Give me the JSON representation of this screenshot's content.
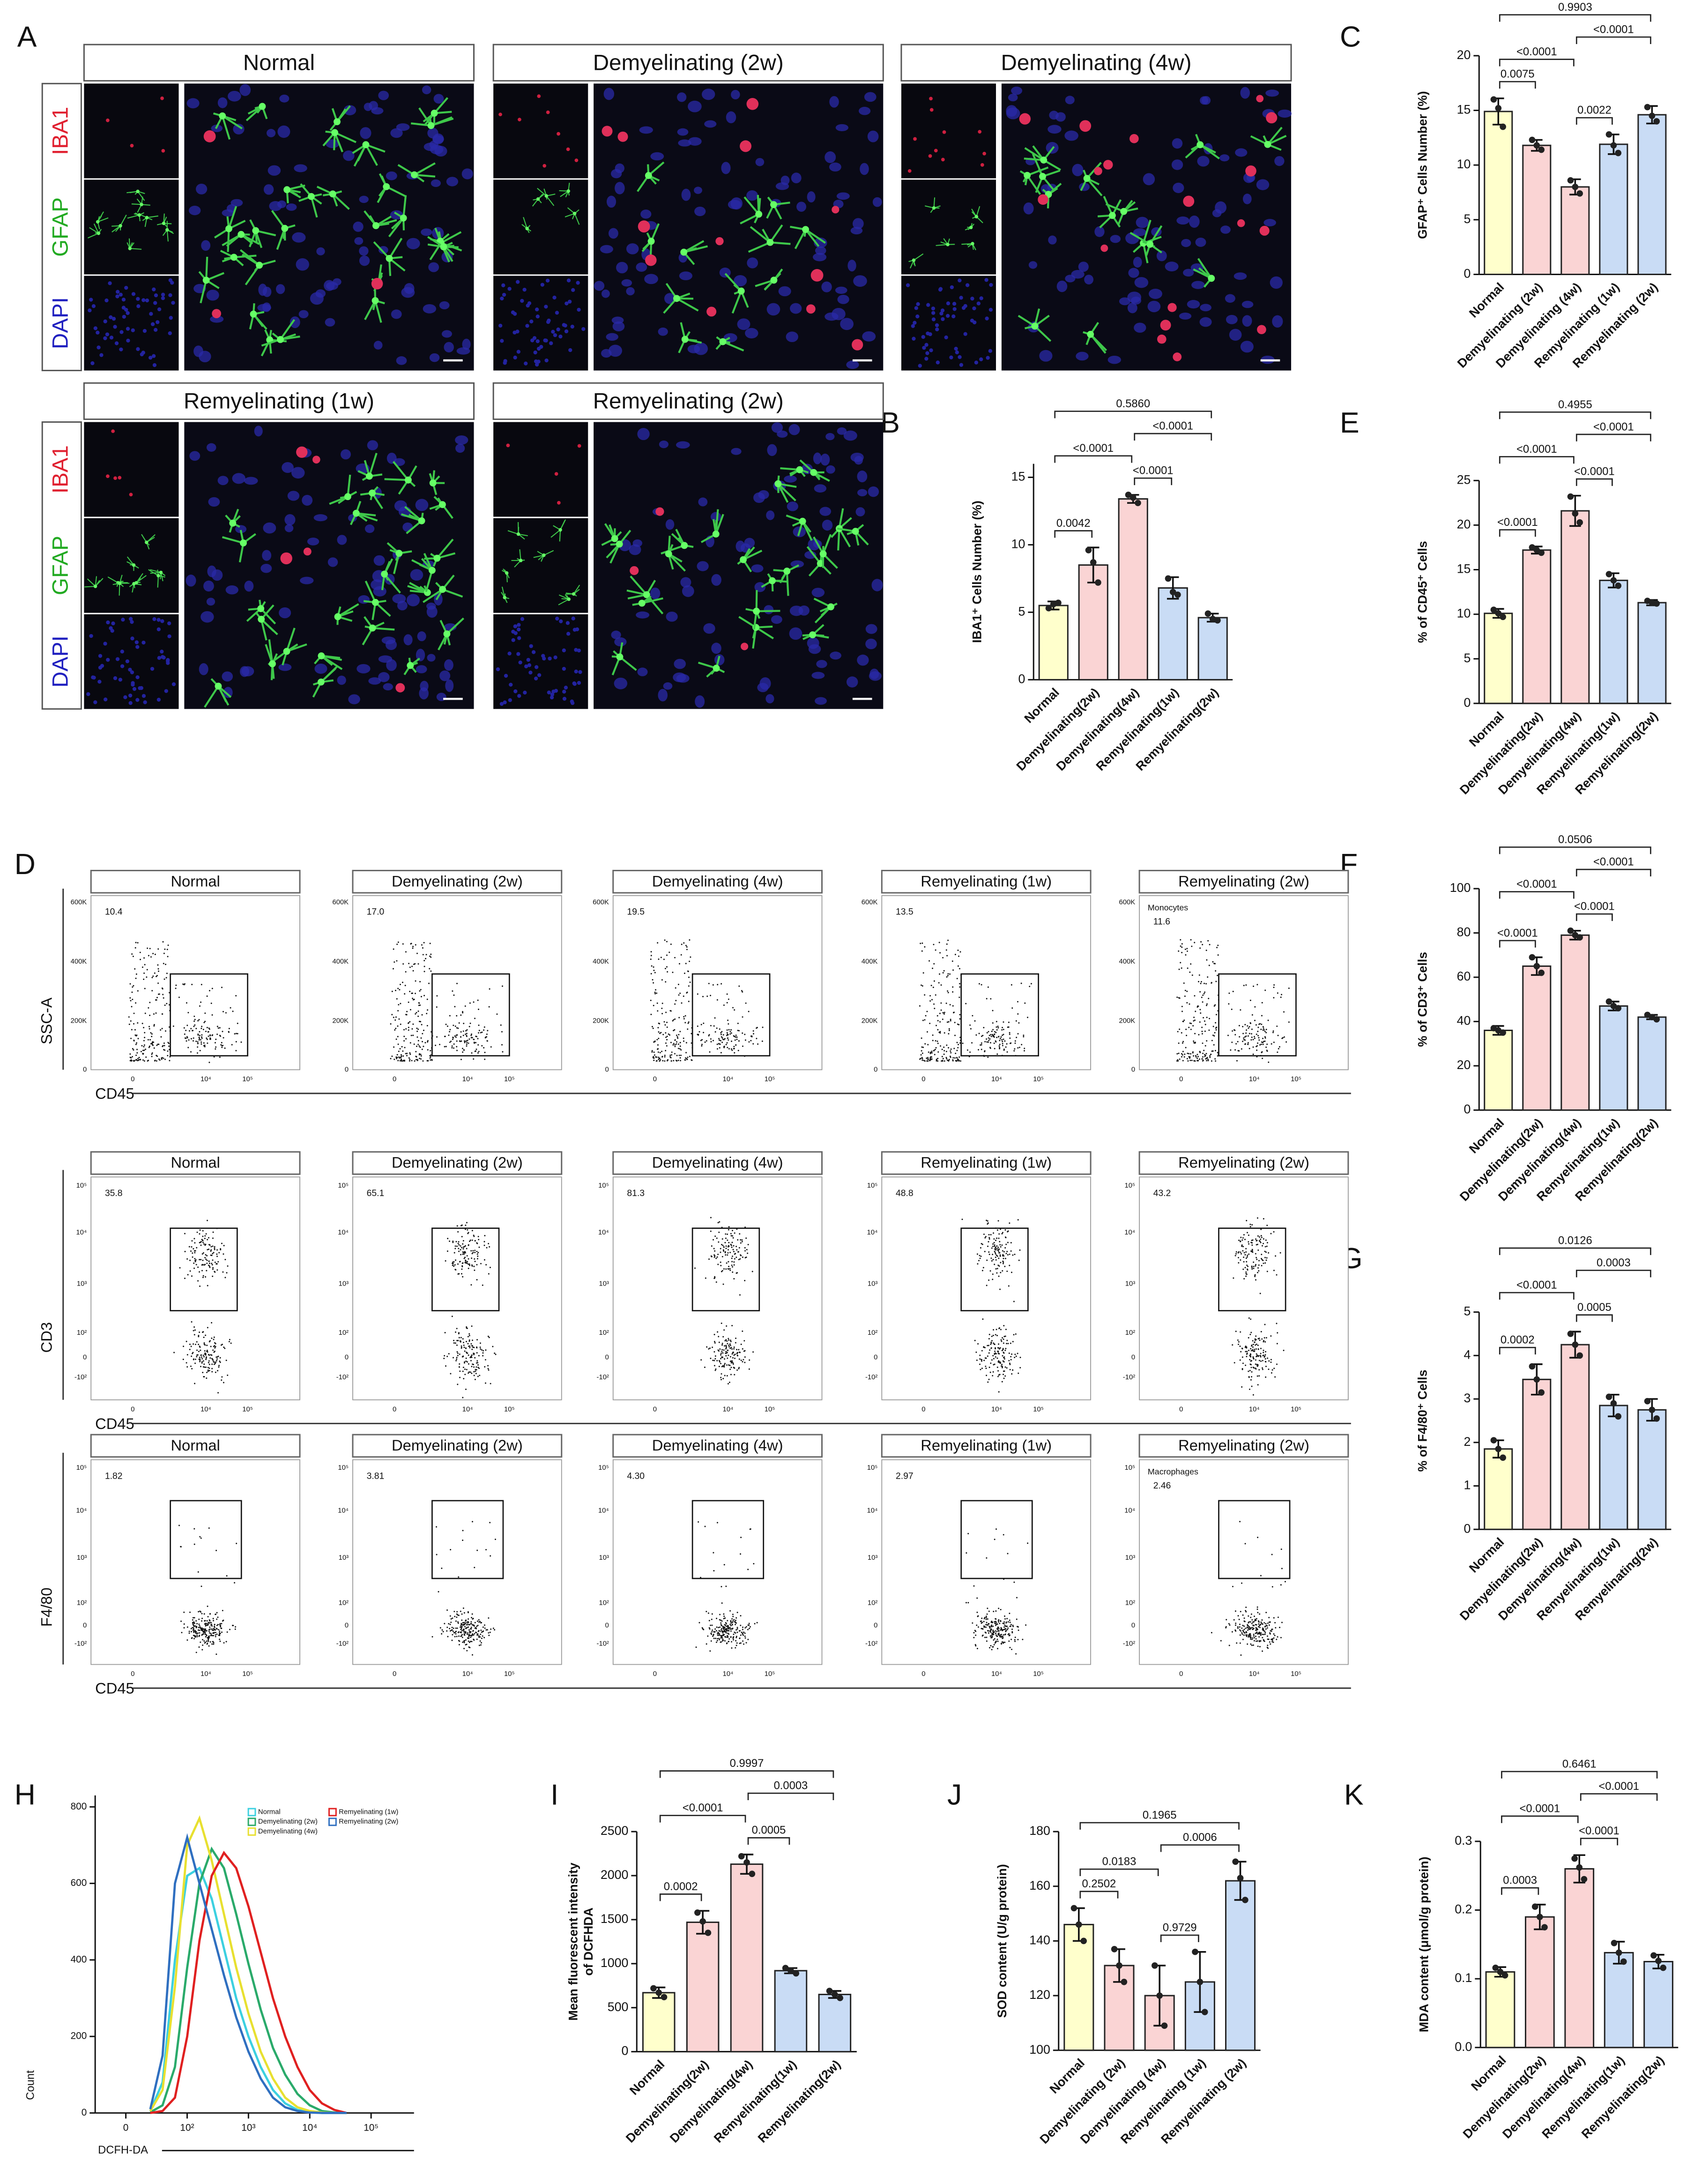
{
  "panel_labels": [
    "A",
    "B",
    "C",
    "D",
    "E",
    "F",
    "G",
    "H",
    "I",
    "J",
    "K"
  ],
  "microscopy": {
    "groups": [
      "Normal",
      "Demyelinating (2w)",
      "Demyelinating (4w)",
      "Remyelinating (1w)",
      "Remyelinating (2w)"
    ],
    "channels": [
      "IBA1",
      "GFAP",
      "DAPI"
    ]
  },
  "flow": {
    "groups": [
      "Normal",
      "Demyelinating (2w)",
      "Demyelinating (4w)",
      "Remyelinating (1w)",
      "Remyelinating (2w)"
    ],
    "x_label": "CD45",
    "rows": [
      {
        "y_label": "SSC-A",
        "yticks": [
          "600K",
          "400K",
          "200K",
          "0"
        ],
        "xticks": [
          "0",
          "10⁴",
          "10⁵"
        ],
        "gates": [
          "10.4",
          "17.0",
          "19.5",
          "13.5",
          "11.6"
        ],
        "gate_name": "Monocytes"
      },
      {
        "y_label": "CD3",
        "yticks": [
          "10⁵",
          "10⁴",
          "10³",
          "10²",
          "0",
          "-10²"
        ],
        "xticks": [
          "0",
          "10⁴",
          "10⁵"
        ],
        "gates": [
          "35.8",
          "65.1",
          "81.3",
          "48.8",
          "43.2"
        ]
      },
      {
        "y_label": "F4/80",
        "yticks": [
          "10⁵",
          "10⁴",
          "10³",
          "10²",
          "0",
          "-10²"
        ],
        "xticks": [
          "0",
          "10⁴",
          "10⁵"
        ],
        "gates": [
          "1.82",
          "3.81",
          "4.30",
          "2.97",
          "2.46"
        ],
        "gate_name": "Macrophages"
      }
    ]
  },
  "chart_data": [
    {
      "type": "line",
      "x_label": "DCFH-DA",
      "y_label": "Count",
      "x": [
        1.4,
        1.6,
        1.8,
        2.0,
        2.2,
        2.4,
        2.6,
        2.8,
        3.0,
        3.2,
        3.4,
        3.6,
        3.8,
        4.0,
        4.2,
        4.4,
        4.6
      ],
      "series": [
        {
          "name": "Normal",
          "color": "#3cd0e0",
          "values": [
            5,
            80,
            400,
            620,
            640,
            560,
            430,
            300,
            200,
            120,
            60,
            25,
            8,
            2,
            0,
            0,
            0
          ]
        },
        {
          "name": "Demyelinating (2w)",
          "color": "#2aaa6a",
          "values": [
            2,
            20,
            120,
            380,
            600,
            690,
            640,
            520,
            390,
            270,
            170,
            100,
            50,
            20,
            5,
            1,
            0
          ]
        },
        {
          "name": "Demyelinating (4w)",
          "color": "#e8e030",
          "values": [
            5,
            60,
            330,
            700,
            770,
            660,
            520,
            380,
            260,
            160,
            90,
            40,
            15,
            5,
            1,
            0,
            0
          ]
        },
        {
          "name": "Remyelinating (1w)",
          "color": "#e02020",
          "values": [
            0,
            5,
            40,
            200,
            450,
            620,
            680,
            640,
            540,
            420,
            300,
            200,
            120,
            60,
            25,
            8,
            0
          ]
        },
        {
          "name": "Remyelinating (2w)",
          "color": "#2f6fc0",
          "values": [
            10,
            150,
            600,
            720,
            600,
            480,
            360,
            250,
            160,
            90,
            40,
            15,
            5,
            1,
            0,
            0,
            0
          ]
        }
      ],
      "xlim": [
        0.5,
        5.7
      ],
      "xticks": [
        {
          "value": 1,
          "label": "0"
        },
        {
          "value": 2,
          "label": "10²"
        },
        {
          "value": 3,
          "label": "10³"
        },
        {
          "value": 4,
          "label": "10⁴"
        },
        {
          "value": 5,
          "label": "10⁵"
        }
      ],
      "ylim": [
        0,
        830
      ],
      "yticks": [
        0,
        200,
        400,
        600,
        800
      ]
    },
    {
      "type": "bar",
      "y_label": "IBA1⁺ Cells Number (%)",
      "categories": [
        "Normal",
        "Demyelinating(2w)",
        "Demyelinating(4w)",
        "Remyelinating(1w)",
        "Remyelinating(2w)"
      ],
      "values": [
        5.5,
        8.5,
        13.4,
        6.8,
        4.6
      ],
      "errors": [
        0.3,
        1.3,
        0.3,
        0.8,
        0.3
      ],
      "points": [
        [
          5.3,
          5.6,
          5.7
        ],
        [
          9.6,
          8.7,
          7.2
        ],
        [
          13.7,
          13.5,
          13.1
        ],
        [
          7.5,
          6.5,
          6.3
        ],
        [
          4.9,
          4.5,
          4.4
        ]
      ],
      "colors": [
        "#ffffcc",
        "#fad4d4",
        "#fad4d4",
        "#c9dcf5",
        "#c9dcf5"
      ],
      "ylim": [
        0,
        16
      ],
      "yticks": [
        0,
        5,
        10,
        15
      ],
      "comparisons": [
        {
          "from": 0,
          "to": 1,
          "label": "0.0042"
        },
        {
          "from": 0,
          "to": 2,
          "label": "<0.0001"
        },
        {
          "from": 2,
          "to": 3,
          "label": "<0.0001"
        },
        {
          "from": 2,
          "to": 4,
          "label": "<0.0001"
        },
        {
          "from": 0,
          "to": 4,
          "label": "0.5860"
        }
      ]
    },
    {
      "type": "bar",
      "y_label": "GFAP⁺ Cells Number (%)",
      "categories": [
        "Normal",
        "Demyelinating (2w)",
        "Demyelinating (4w)",
        "Remyelinating (1w)",
        "Remyelinating (2w)"
      ],
      "values": [
        14.9,
        11.8,
        8.0,
        11.9,
        14.6
      ],
      "errors": [
        1.2,
        0.5,
        0.7,
        0.9,
        0.8
      ],
      "points": [
        [
          16.0,
          15.2,
          13.5
        ],
        [
          12.3,
          11.8,
          11.4
        ],
        [
          8.6,
          8.0,
          7.4
        ],
        [
          12.8,
          11.8,
          11.1
        ],
        [
          15.3,
          14.5,
          14.0
        ]
      ],
      "colors": [
        "#ffffcc",
        "#fad4d4",
        "#fad4d4",
        "#c9dcf5",
        "#c9dcf5"
      ],
      "ylim": [
        0,
        20
      ],
      "yticks": [
        0,
        5,
        10,
        15,
        20
      ],
      "comparisons": [
        {
          "from": 0,
          "to": 1,
          "label": "0.0075"
        },
        {
          "from": 2,
          "to": 3,
          "label": "0.0022"
        },
        {
          "from": 0,
          "to": 2,
          "label": "<0.0001"
        },
        {
          "from": 2,
          "to": 4,
          "label": "<0.0001"
        },
        {
          "from": 0,
          "to": 4,
          "label": "0.9903"
        }
      ]
    },
    {
      "type": "bar",
      "y_label": "% of CD45⁺ Cells",
      "categories": [
        "Normal",
        "Demyelinating(2w)",
        "Demyelinating(4w)",
        "Remyelinating(1w)",
        "Remyelinating(2w)"
      ],
      "values": [
        10.1,
        17.2,
        21.6,
        13.8,
        11.3
      ],
      "errors": [
        0.5,
        0.4,
        1.7,
        0.8,
        0.3
      ],
      "points": [
        [
          10.5,
          10.1,
          9.7
        ],
        [
          17.5,
          17.2,
          16.9
        ],
        [
          23.2,
          21.3,
          20.3
        ],
        [
          14.5,
          13.8,
          13.2
        ],
        [
          11.5,
          11.3,
          11.2
        ]
      ],
      "colors": [
        "#ffffcc",
        "#fad4d4",
        "#fad4d4",
        "#c9dcf5",
        "#c9dcf5"
      ],
      "ylim": [
        0,
        25
      ],
      "yticks": [
        0,
        5,
        10,
        15,
        20,
        25
      ],
      "comparisons": [
        {
          "from": 0,
          "to": 1,
          "label": "<0.0001"
        },
        {
          "from": 0,
          "to": 2,
          "label": "<0.0001"
        },
        {
          "from": 2,
          "to": 3,
          "label": "<0.0001"
        },
        {
          "from": 2,
          "to": 4,
          "label": "<0.0001"
        },
        {
          "from": 0,
          "to": 4,
          "label": "0.4955"
        }
      ]
    },
    {
      "type": "bar",
      "y_label": "% of CD3⁺ Cells",
      "categories": [
        "Normal",
        "Demyelinating(2w)",
        "Demyelinating(4w)",
        "Remyelinating(1w)",
        "Remyelinating(2w)"
      ],
      "values": [
        36,
        65,
        79,
        47,
        42
      ],
      "errors": [
        2,
        4,
        2,
        2,
        1
      ],
      "points": [
        [
          37,
          36,
          35
        ],
        [
          69,
          65,
          62
        ],
        [
          81,
          79,
          78
        ],
        [
          49,
          47,
          46
        ],
        [
          43,
          42,
          41
        ]
      ],
      "colors": [
        "#ffffcc",
        "#fad4d4",
        "#fad4d4",
        "#c9dcf5",
        "#c9dcf5"
      ],
      "ylim": [
        0,
        100
      ],
      "yticks": [
        0,
        20,
        40,
        60,
        80,
        100
      ],
      "comparisons": [
        {
          "from": 0,
          "to": 1,
          "label": "<0.0001"
        },
        {
          "from": 0,
          "to": 2,
          "label": "<0.0001"
        },
        {
          "from": 2,
          "to": 3,
          "label": "<0.0001"
        },
        {
          "from": 2,
          "to": 4,
          "label": "<0.0001"
        },
        {
          "from": 0,
          "to": 4,
          "label": "0.0506"
        }
      ]
    },
    {
      "type": "bar",
      "y_label": "% of F4/80⁺ Cells",
      "categories": [
        "Normal",
        "Demyelinating(2w)",
        "Demyelinating(4w)",
        "Remyelinating(1w)",
        "Remyelinating(2w)"
      ],
      "values": [
        1.85,
        3.45,
        4.25,
        2.85,
        2.75
      ],
      "errors": [
        0.2,
        0.35,
        0.3,
        0.25,
        0.25
      ],
      "points": [
        [
          2.05,
          1.85,
          1.65
        ],
        [
          3.75,
          3.45,
          3.15
        ],
        [
          4.5,
          4.25,
          4.0
        ],
        [
          3.05,
          2.9,
          2.6
        ],
        [
          2.95,
          2.75,
          2.55
        ]
      ],
      "colors": [
        "#ffffcc",
        "#fad4d4",
        "#fad4d4",
        "#c9dcf5",
        "#c9dcf5"
      ],
      "ylim": [
        0,
        5
      ],
      "yticks": [
        0,
        1,
        2,
        3,
        4,
        5
      ],
      "comparisons": [
        {
          "from": 0,
          "to": 1,
          "label": "0.0002"
        },
        {
          "from": 0,
          "to": 2,
          "label": "<0.0001"
        },
        {
          "from": 2,
          "to": 3,
          "label": "0.0005"
        },
        {
          "from": 2,
          "to": 4,
          "label": "0.0003"
        },
        {
          "from": 0,
          "to": 4,
          "label": "0.0126"
        }
      ]
    },
    {
      "type": "bar",
      "y_label": [
        "Mean fluorescent  intensity",
        "of DCFHDA"
      ],
      "categories": [
        "Normal",
        "Demyelinating(2w)",
        "Demyelinating(4w)",
        "Remyelinating(1w)",
        "Remyelinating(2w)"
      ],
      "values": [
        670,
        1470,
        2130,
        920,
        650
      ],
      "errors": [
        60,
        130,
        110,
        30,
        40
      ],
      "points": [
        [
          720,
          670,
          620
        ],
        [
          1580,
          1480,
          1350
        ],
        [
          2220,
          2150,
          2020
        ],
        [
          950,
          920,
          890
        ],
        [
          690,
          650,
          610
        ]
      ],
      "colors": [
        "#ffffcc",
        "#fad4d4",
        "#fad4d4",
        "#c9dcf5",
        "#c9dcf5"
      ],
      "ylim": [
        0,
        2500
      ],
      "yticks": [
        0,
        500,
        1000,
        1500,
        2000,
        2500
      ],
      "comparisons": [
        {
          "from": 0,
          "to": 1,
          "label": "0.0002"
        },
        {
          "from": 0,
          "to": 2,
          "label": "<0.0001"
        },
        {
          "from": 2,
          "to": 3,
          "label": "0.0005"
        },
        {
          "from": 2,
          "to": 4,
          "label": "0.0003"
        },
        {
          "from": 0,
          "to": 4,
          "label": "0.9997"
        }
      ]
    },
    {
      "type": "bar",
      "y_label": "SOD content (U/g protein)",
      "categories": [
        "Normal",
        "Demyelinating (2w)",
        "Demyelinating (4w)",
        "Remyelinating (1w)",
        "Remyelinating (2w)"
      ],
      "values": [
        146,
        131,
        120,
        125,
        162
      ],
      "errors": [
        6,
        6,
        11,
        11,
        7
      ],
      "points": [
        [
          152,
          146,
          140
        ],
        [
          137,
          131,
          125
        ],
        [
          131,
          120,
          109
        ],
        [
          136,
          125,
          114
        ],
        [
          169,
          163,
          155
        ]
      ],
      "colors": [
        "#ffffcc",
        "#fad4d4",
        "#fad4d4",
        "#c9dcf5",
        "#c9dcf5"
      ],
      "ylim": [
        100,
        180
      ],
      "yticks": [
        100,
        120,
        140,
        160,
        180
      ],
      "comparisons": [
        {
          "from": 0,
          "to": 1,
          "label": "0.2502"
        },
        {
          "from": 0,
          "to": 2,
          "label": "0.0183"
        },
        {
          "from": 2,
          "to": 3,
          "label": "0.9729"
        },
        {
          "from": 2,
          "to": 4,
          "label": "0.0006"
        },
        {
          "from": 0,
          "to": 4,
          "label": "0.1965"
        }
      ]
    },
    {
      "type": "bar",
      "y_label": "MDA content (μmol/g protein)",
      "categories": [
        "Normal",
        "Demyelinating(2w)",
        "Demyelinating(4w)",
        "Remyelinating(1w)",
        "Remyelinating(2w)"
      ],
      "values": [
        0.11,
        0.19,
        0.26,
        0.138,
        0.125
      ],
      "errors": [
        0.007,
        0.018,
        0.02,
        0.016,
        0.01
      ],
      "points": [
        [
          0.116,
          0.11,
          0.105
        ],
        [
          0.205,
          0.19,
          0.175
        ],
        [
          0.275,
          0.262,
          0.245
        ],
        [
          0.152,
          0.138,
          0.125
        ],
        [
          0.134,
          0.126,
          0.116
        ]
      ],
      "colors": [
        "#ffffcc",
        "#fad4d4",
        "#fad4d4",
        "#c9dcf5",
        "#c9dcf5"
      ],
      "ylim": [
        0,
        0.3
      ],
      "yticks": [
        {
          "value": 0,
          "label": "0.0"
        },
        0.1,
        0.2,
        0.3
      ],
      "comparisons": [
        {
          "from": 0,
          "to": 1,
          "label": "0.0003"
        },
        {
          "from": 0,
          "to": 2,
          "label": "<0.0001"
        },
        {
          "from": 2,
          "to": 3,
          "label": "<0.0001"
        },
        {
          "from": 2,
          "to": 4,
          "label": "<0.0001"
        },
        {
          "from": 0,
          "to": 4,
          "label": "0.6461"
        }
      ]
    }
  ]
}
